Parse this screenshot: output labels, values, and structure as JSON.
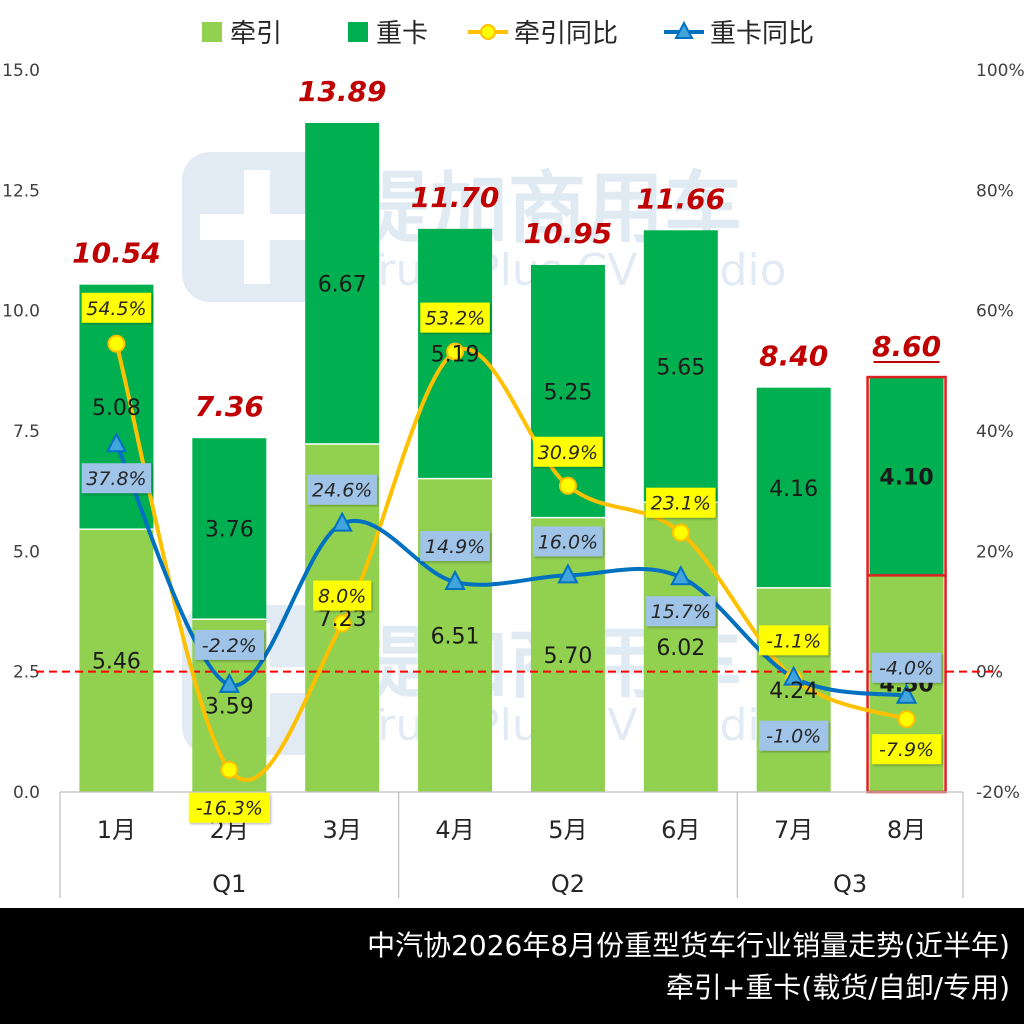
{
  "footer": {
    "line1": "中汽协2026年8月份重型货车行业销量走势(近半年)",
    "line2": "牵引+重卡(载货/自卸/专用)"
  },
  "watermark": {
    "cn": "提加商用车",
    "en": "TruckPlus CV studio"
  },
  "colors": {
    "tractor": "#92d050",
    "heavy": "#00b050",
    "tractor_yoy_line": "#ffc000",
    "tractor_yoy_marker": "#ffff00",
    "heavy_yoy_line": "#0070c0",
    "heavy_yoy_marker": "#41a5dc",
    "total_label": "#c00000",
    "highlight_border": "#e02020",
    "zero_line": "#ff0000",
    "yoy_label_tractor_bg": "#ffff00",
    "yoy_label_heavy_bg": "#a0c4e8"
  },
  "chart_data": {
    "type": "bar",
    "stacked": true,
    "categories": [
      "1月",
      "2月",
      "3月",
      "4月",
      "5月",
      "6月",
      "7月",
      "8月"
    ],
    "groups": [
      {
        "label": "Q1",
        "categories": [
          "1月",
          "2月",
          "3月"
        ]
      },
      {
        "label": "Q2",
        "categories": [
          "4月",
          "5月",
          "6月"
        ]
      },
      {
        "label": "Q3",
        "categories": [
          "7月",
          "8月"
        ]
      }
    ],
    "series": [
      {
        "name": "牵引",
        "kind": "bar",
        "axis": "left",
        "values": [
          5.46,
          3.59,
          7.23,
          6.51,
          5.7,
          6.02,
          4.24,
          4.5
        ],
        "labels": [
          "5.46",
          "3.59",
          "7.23",
          "6.51",
          "5.70",
          "6.02",
          "4.24",
          "4.50"
        ]
      },
      {
        "name": "重卡",
        "kind": "bar",
        "axis": "left",
        "values": [
          5.08,
          3.76,
          6.67,
          5.19,
          5.25,
          5.65,
          4.16,
          4.1
        ],
        "labels": [
          "5.08",
          "3.76",
          "6.67",
          "5.19",
          "5.25",
          "5.65",
          "4.16",
          "4.10"
        ]
      },
      {
        "name": "牵引同比",
        "kind": "line",
        "axis": "right",
        "values": [
          54.5,
          -16.3,
          8.0,
          53.2,
          30.9,
          23.1,
          -1.1,
          -7.9
        ],
        "labels": [
          "54.5%",
          "-16.3%",
          "8.0%",
          "53.2%",
          "30.9%",
          "23.1%",
          "-1.1%",
          "-7.9%"
        ]
      },
      {
        "name": "重卡同比",
        "kind": "line",
        "axis": "right",
        "values": [
          37.8,
          -2.2,
          24.6,
          14.9,
          16.0,
          15.7,
          -1.0,
          -4.0
        ],
        "labels": [
          "37.8%",
          "-2.2%",
          "24.6%",
          "14.9%",
          "16.0%",
          "15.7%",
          "-1.0%",
          "-4.0%"
        ]
      }
    ],
    "totals": [
      "10.54",
      "7.36",
      "13.89",
      "11.70",
      "10.95",
      "11.66",
      "8.40",
      "8.60"
    ],
    "y_left": {
      "min": 0,
      "max": 15,
      "ticks": [
        "0.0",
        "2.5",
        "5.0",
        "7.5",
        "10.0",
        "12.5",
        "15.0"
      ]
    },
    "y_right": {
      "min": -20,
      "max": 100,
      "ticks": [
        "-20%",
        "0%",
        "20%",
        "40%",
        "60%",
        "80%",
        "100%"
      ]
    },
    "highlight_category": "8月",
    "legend": "top",
    "grid": false
  }
}
